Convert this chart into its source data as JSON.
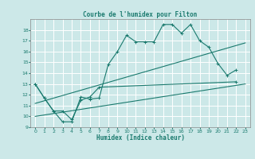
{
  "title": "Courbe de l'humidex pour Filton",
  "xlabel": "Humidex (Indice chaleur)",
  "xlim": [
    -0.5,
    23.5
  ],
  "ylim": [
    9,
    19
  ],
  "yticks": [
    9,
    10,
    11,
    12,
    13,
    14,
    15,
    16,
    17,
    18
  ],
  "xticks": [
    0,
    1,
    2,
    3,
    4,
    5,
    6,
    7,
    8,
    9,
    10,
    11,
    12,
    13,
    14,
    15,
    16,
    17,
    18,
    19,
    20,
    21,
    22,
    23
  ],
  "bg_color": "#cce8e8",
  "line_color": "#1a7a6e",
  "grid_color": "#b8d8d8",
  "line1_x": [
    0,
    1,
    2,
    3,
    4,
    5,
    6,
    7,
    8,
    9,
    10,
    11,
    12,
    13,
    14,
    15,
    16,
    17,
    18,
    19,
    20,
    21,
    22
  ],
  "line1_y": [
    13,
    11.7,
    10.5,
    9.5,
    9.5,
    11.8,
    11.6,
    11.7,
    14.8,
    16.0,
    17.5,
    16.9,
    16.9,
    16.9,
    18.5,
    18.5,
    17.7,
    18.5,
    17.0,
    16.4,
    14.9,
    13.8,
    14.3
  ],
  "line2_x": [
    0,
    1,
    2,
    3,
    4,
    5,
    6,
    7,
    22
  ],
  "line2_y": [
    13.0,
    11.7,
    10.5,
    10.5,
    9.7,
    11.5,
    11.8,
    12.7,
    13.2
  ],
  "line3_x": [
    0,
    23
  ],
  "line3_y": [
    10.0,
    13.0
  ],
  "line4_x": [
    0,
    23
  ],
  "line4_y": [
    11.2,
    16.8
  ]
}
